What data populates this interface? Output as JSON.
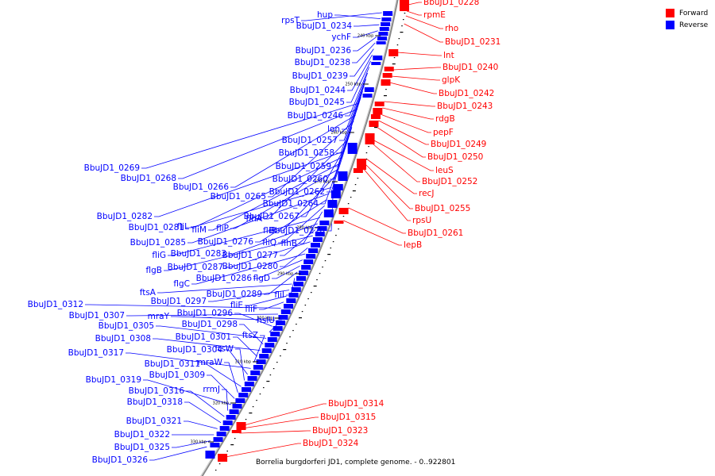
{
  "legend": {
    "forward_label": "Forward",
    "reverse_label": "Reverse",
    "forward_color": "#ff0000",
    "reverse_color": "#0000ff"
  },
  "caption": "Borrelia burgdorferi JD1, complete genome. - 0..922801",
  "scale_ticks": [
    "240 kbp",
    "250 kbp",
    "260 kbp",
    "270 kbp",
    "280 kbp",
    "290 kbp",
    "300 kbp",
    "310 kbp",
    "320 kbp",
    "330 kbp"
  ],
  "forward_genes": [
    "BbuJD1_0228",
    "rpmE",
    "rho",
    "BbuJD1_0231",
    "lnt",
    "BbuJD1_0240",
    "glpK",
    "BbuJD1_0242",
    "BbuJD1_0243",
    "rdgB",
    "pepF",
    "BbuJD1_0249",
    "BbuJD1_0250",
    "leuS",
    "BbuJD1_0252",
    "recJ",
    "BbuJD1_0255",
    "rpsU",
    "BbuJD1_0261",
    "lepB",
    "BbuJD1_0314",
    "BbuJD1_0315",
    "BbuJD1_0323",
    "BbuJD1_0324"
  ],
  "reverse_genes": [
    "rpsT",
    "hup",
    "BbuJD1_0234",
    "ychF",
    "BbuJD1_0236",
    "BbuJD1_0238",
    "BbuJD1_0239",
    "BbuJD1_0244",
    "BbuJD1_0245",
    "BbuJD1_0246",
    "lon",
    "BbuJD1_0257",
    "BbuJD1_0258",
    "BbuJD1_0259",
    "BbuJD1_0260",
    "BbuJD1_0269",
    "BbuJD1_0268",
    "BbuJD1_0266",
    "BbuJD1_0265",
    "BbuJD1_0262",
    "BbuJD1_0264",
    "flhA",
    "BbuJD1_0267",
    "BbuJD1_0282",
    "fliL",
    "fliM",
    "fliP",
    "fliR",
    "BbuJD1_0270",
    "BbuJD1_0281",
    "BbuJD1_0285",
    "BbuJD1_0276",
    "fliQ",
    "flhB",
    "fliG",
    "BbuJD1_0283",
    "BbuJD1_0277",
    "flgB",
    "BbuJD1_0287",
    "BbuJD1_0280",
    "flgC",
    "BbuJD1_0286",
    "flgD",
    "BbuJD1_0289",
    "fliI",
    "ftsA",
    "BbuJD1_0297",
    "fliE",
    "fliF",
    "BbuJD1_0312",
    "BbuJD1_0307",
    "mraY",
    "BbuJD1_0296",
    "hslU",
    "BbuJD1_0305",
    "BbuJD1_0298",
    "BbuJD1_0308",
    "BbuJD1_0301",
    "ftsZ",
    "BbuJD1_0317",
    "BbuJD1_0304",
    "ftsW",
    "BbuJD1_0311",
    "mraW",
    "BbuJD1_0309",
    "BbuJD1_0319",
    "rrmJ",
    "BbuJD1_0316",
    "BbuJD1_0318",
    "BbuJD1_0321",
    "BbuJD1_0322",
    "BbuJD1_0325",
    "BbuJD1_0326"
  ]
}
